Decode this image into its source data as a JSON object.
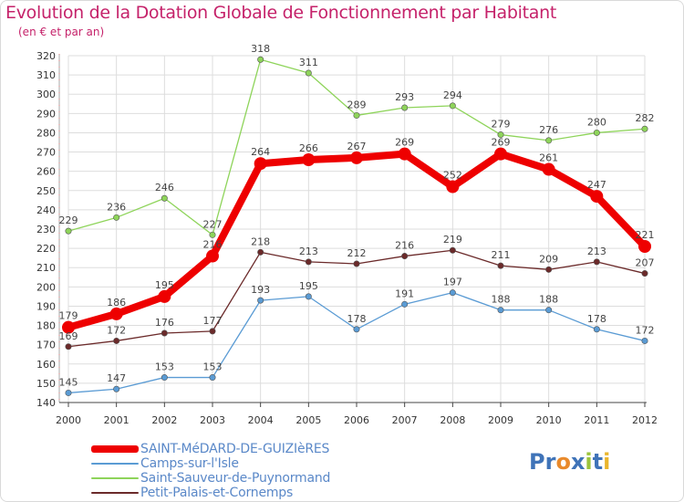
{
  "header": {
    "title": "Evolution de la Dotation Globale de Fonctionnement par Habitant",
    "subtitle": "(en € et par an)"
  },
  "brand": {
    "logo_text": "Proxiti",
    "letters": [
      "P",
      "r",
      "o",
      "x",
      "i",
      "t",
      "i"
    ]
  },
  "colors": {
    "title": "#c5226a",
    "grid": "#dddddd",
    "legend_text": "#5a88c8",
    "logo_letters": [
      "#3f73b8",
      "#3f73b8",
      "#e98a2c",
      "#3f73b8",
      "#9cc43c",
      "#3f73b8",
      "#e9b52c"
    ]
  },
  "chart_data": {
    "type": "line",
    "title": "Evolution de la Dotation Globale de Fonctionnement par Habitant",
    "subtitle": "(en € et par an)",
    "xlabel": "",
    "ylabel": "",
    "x": [
      2000,
      2001,
      2002,
      2003,
      2004,
      2005,
      2006,
      2007,
      2008,
      2009,
      2010,
      2011,
      2012
    ],
    "ylim": [
      140,
      320
    ],
    "yticks": [
      140,
      150,
      160,
      170,
      180,
      190,
      200,
      210,
      220,
      230,
      240,
      250,
      260,
      270,
      280,
      290,
      300,
      310,
      320
    ],
    "grid": true,
    "legend_position": "bottom-left",
    "series": [
      {
        "name": "SAINT-MéDARD-DE-GUIZIèRES",
        "color": "#ee0000",
        "emphasis": true,
        "values": [
          179,
          186,
          195,
          216,
          264,
          266,
          267,
          269,
          252,
          269,
          261,
          247,
          221
        ]
      },
      {
        "name": "Camps-sur-l'Isle",
        "color": "#5a9bd4",
        "emphasis": false,
        "values": [
          145,
          147,
          153,
          153,
          193,
          195,
          178,
          191,
          197,
          188,
          188,
          178,
          172
        ]
      },
      {
        "name": "Saint-Sauveur-de-Puynormand",
        "color": "#8ed45a",
        "emphasis": false,
        "values": [
          229,
          236,
          246,
          227,
          318,
          311,
          289,
          293,
          294,
          279,
          276,
          280,
          282
        ]
      },
      {
        "name": "Petit-Palais-et-Cornemps",
        "color": "#6b2a2a",
        "emphasis": false,
        "values": [
          169,
          172,
          176,
          177,
          218,
          213,
          212,
          216,
          219,
          211,
          209,
          213,
          207
        ]
      }
    ]
  }
}
